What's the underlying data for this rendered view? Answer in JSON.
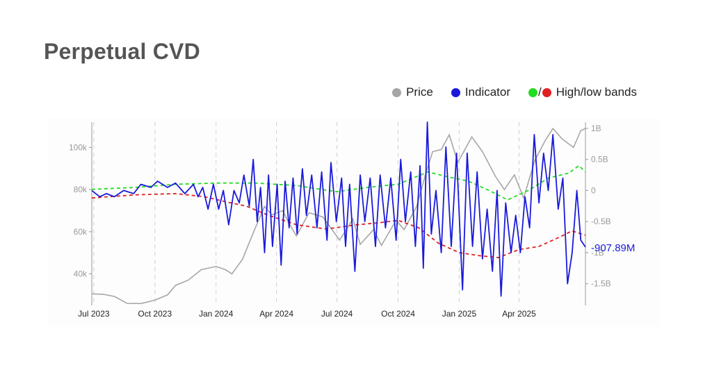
{
  "title": "Perpetual CVD",
  "legend": {
    "price_label": "Price",
    "indicator_label": "Indicator",
    "bands_slash": "/",
    "bands_label": "High/low bands"
  },
  "colors": {
    "price": "#a6a6a6",
    "indicator": "#1a1adb",
    "high_band": "#22dd22",
    "low_band": "#e02020",
    "last_value": "#1a1adb"
  },
  "chart_data": {
    "type": "line",
    "x_ticks": [
      "Jul 2023",
      "Oct 2023",
      "Jan 2024",
      "Apr 2024",
      "Jul 2024",
      "Oct 2024",
      "Jan 2025",
      "Apr 2025"
    ],
    "x_tick_dates": [
      "2023-07-01",
      "2023-10-01",
      "2024-01-01",
      "2024-04-01",
      "2024-07-01",
      "2024-10-01",
      "2025-01-01",
      "2025-04-01"
    ],
    "x_range": [
      "2023-06-28",
      "2025-07-10"
    ],
    "y_left": {
      "ticks": [
        40000,
        60000,
        80000,
        100000
      ],
      "tick_labels": [
        "40k",
        "60k",
        "80k",
        "100k"
      ],
      "range": [
        25000,
        112000
      ]
    },
    "y_right": {
      "ticks": [
        1,
        0.5,
        0,
        -0.5,
        -1,
        -1.5
      ],
      "tick_labels": [
        "1B",
        "0.5B",
        "0",
        "-0.5B",
        "-1B",
        "-1.5B"
      ],
      "range": [
        -1.85,
        1.1
      ],
      "unit": "B"
    },
    "grid": "vertical dashed at x ticks",
    "last_value_label": "-907.89M",
    "series": [
      {
        "name": "Price",
        "axis": "left",
        "points": [
          [
            "2023-06-28",
            30500
          ],
          [
            "2023-07-15",
            30300
          ],
          [
            "2023-08-01",
            29300
          ],
          [
            "2023-08-20",
            26000
          ],
          [
            "2023-09-10",
            25900
          ],
          [
            "2023-10-01",
            27500
          ],
          [
            "2023-10-20",
            30000
          ],
          [
            "2023-11-01",
            34500
          ],
          [
            "2023-11-20",
            37000
          ],
          [
            "2023-12-10",
            42000
          ],
          [
            "2024-01-01",
            43500
          ],
          [
            "2024-01-15",
            42000
          ],
          [
            "2024-01-25",
            40000
          ],
          [
            "2024-02-10",
            47000
          ],
          [
            "2024-02-28",
            61000
          ],
          [
            "2024-03-14",
            72000
          ],
          [
            "2024-03-25",
            68000
          ],
          [
            "2024-04-10",
            70000
          ],
          [
            "2024-04-20",
            64000
          ],
          [
            "2024-05-01",
            58000
          ],
          [
            "2024-05-20",
            69000
          ],
          [
            "2024-06-10",
            67000
          ],
          [
            "2024-07-05",
            56000
          ],
          [
            "2024-07-25",
            66000
          ],
          [
            "2024-08-05",
            54000
          ],
          [
            "2024-08-25",
            61000
          ],
          [
            "2024-09-06",
            53500
          ],
          [
            "2024-09-28",
            65500
          ],
          [
            "2024-10-10",
            61000
          ],
          [
            "2024-10-29",
            72000
          ],
          [
            "2024-11-12",
            88000
          ],
          [
            "2024-11-22",
            98000
          ],
          [
            "2024-12-05",
            99000
          ],
          [
            "2024-12-17",
            106000
          ],
          [
            "2024-12-30",
            93000
          ],
          [
            "2025-01-20",
            105000
          ],
          [
            "2025-02-05",
            98000
          ],
          [
            "2025-02-25",
            86000
          ],
          [
            "2025-03-10",
            80000
          ],
          [
            "2025-03-25",
            87000
          ],
          [
            "2025-04-08",
            76000
          ],
          [
            "2025-04-25",
            94000
          ],
          [
            "2025-05-10",
            103000
          ],
          [
            "2025-05-22",
            109000
          ],
          [
            "2025-06-05",
            104000
          ],
          [
            "2025-06-22",
            100000
          ],
          [
            "2025-07-03",
            108000
          ],
          [
            "2025-07-10",
            109000
          ]
        ]
      },
      {
        "name": "Indicator",
        "axis": "right",
        "points": [
          [
            "2023-06-28",
            0.0
          ],
          [
            "2023-07-10",
            -0.1
          ],
          [
            "2023-07-20",
            -0.05
          ],
          [
            "2023-08-01",
            -0.1
          ],
          [
            "2023-08-15",
            0.0
          ],
          [
            "2023-08-30",
            -0.05
          ],
          [
            "2023-09-10",
            0.1
          ],
          [
            "2023-09-25",
            0.05
          ],
          [
            "2023-10-05",
            0.15
          ],
          [
            "2023-10-20",
            0.05
          ],
          [
            "2023-11-01",
            0.12
          ],
          [
            "2023-11-15",
            -0.05
          ],
          [
            "2023-11-28",
            0.1
          ],
          [
            "2023-12-05",
            -0.1
          ],
          [
            "2023-12-12",
            0.05
          ],
          [
            "2023-12-20",
            -0.3
          ],
          [
            "2023-12-28",
            0.1
          ],
          [
            "2024-01-05",
            -0.3
          ],
          [
            "2024-01-12",
            0.0
          ],
          [
            "2024-01-20",
            -0.55
          ],
          [
            "2024-01-28",
            0.0
          ],
          [
            "2024-02-05",
            -0.2
          ],
          [
            "2024-02-12",
            0.25
          ],
          [
            "2024-02-20",
            -0.25
          ],
          [
            "2024-02-26",
            0.5
          ],
          [
            "2024-03-03",
            -0.5
          ],
          [
            "2024-03-08",
            0.05
          ],
          [
            "2024-03-14",
            -1.0
          ],
          [
            "2024-03-20",
            0.25
          ],
          [
            "2024-03-26",
            -0.9
          ],
          [
            "2024-04-02",
            0.1
          ],
          [
            "2024-04-08",
            -1.2
          ],
          [
            "2024-04-14",
            0.15
          ],
          [
            "2024-04-20",
            -0.6
          ],
          [
            "2024-04-26",
            0.2
          ],
          [
            "2024-05-02",
            -0.7
          ],
          [
            "2024-05-10",
            0.35
          ],
          [
            "2024-05-16",
            -0.4
          ],
          [
            "2024-05-24",
            0.25
          ],
          [
            "2024-06-01",
            -0.6
          ],
          [
            "2024-06-08",
            0.3
          ],
          [
            "2024-06-16",
            -0.8
          ],
          [
            "2024-06-22",
            0.45
          ],
          [
            "2024-06-30",
            -0.5
          ],
          [
            "2024-07-08",
            0.2
          ],
          [
            "2024-07-14",
            -0.9
          ],
          [
            "2024-07-20",
            0.1
          ],
          [
            "2024-07-28",
            -1.3
          ],
          [
            "2024-08-05",
            0.25
          ],
          [
            "2024-08-12",
            -0.5
          ],
          [
            "2024-08-20",
            0.2
          ],
          [
            "2024-08-28",
            -0.9
          ],
          [
            "2024-09-04",
            0.25
          ],
          [
            "2024-09-12",
            -0.6
          ],
          [
            "2024-09-20",
            0.2
          ],
          [
            "2024-09-28",
            -0.8
          ],
          [
            "2024-10-05",
            0.5
          ],
          [
            "2024-10-12",
            -0.5
          ],
          [
            "2024-10-20",
            0.3
          ],
          [
            "2024-10-27",
            -0.9
          ],
          [
            "2024-11-03",
            0.4
          ],
          [
            "2024-11-08",
            -1.25
          ],
          [
            "2024-11-14",
            1.1
          ],
          [
            "2024-11-20",
            -0.7
          ],
          [
            "2024-11-27",
            0.0
          ],
          [
            "2024-12-05",
            -1.0
          ],
          [
            "2024-12-12",
            0.7
          ],
          [
            "2024-12-20",
            -0.9
          ],
          [
            "2024-12-28",
            0.6
          ],
          [
            "2025-01-06",
            -1.6
          ],
          [
            "2025-01-13",
            0.6
          ],
          [
            "2025-01-21",
            -0.9
          ],
          [
            "2025-01-28",
            0.3
          ],
          [
            "2025-02-05",
            -1.1
          ],
          [
            "2025-02-12",
            -0.3
          ],
          [
            "2025-02-20",
            -1.3
          ],
          [
            "2025-02-27",
            0.0
          ],
          [
            "2025-03-05",
            -1.7
          ],
          [
            "2025-03-12",
            -0.2
          ],
          [
            "2025-03-20",
            -1.0
          ],
          [
            "2025-03-27",
            -0.4
          ],
          [
            "2025-04-03",
            -1.0
          ],
          [
            "2025-04-10",
            -0.1
          ],
          [
            "2025-04-17",
            -0.6
          ],
          [
            "2025-04-24",
            0.9
          ],
          [
            "2025-05-01",
            -0.2
          ],
          [
            "2025-05-08",
            0.6
          ],
          [
            "2025-05-15",
            0.0
          ],
          [
            "2025-05-22",
            0.9
          ],
          [
            "2025-05-30",
            -0.3
          ],
          [
            "2025-06-06",
            0.2
          ],
          [
            "2025-06-13",
            -1.5
          ],
          [
            "2025-06-20",
            -1.0
          ],
          [
            "2025-06-27",
            0.0
          ],
          [
            "2025-07-03",
            -0.8
          ],
          [
            "2025-07-10",
            -0.91
          ]
        ]
      },
      {
        "name": "High band",
        "axis": "right",
        "points": [
          [
            "2023-06-28",
            0.02
          ],
          [
            "2023-09-01",
            0.05
          ],
          [
            "2023-11-01",
            0.1
          ],
          [
            "2024-01-01",
            0.12
          ],
          [
            "2024-03-01",
            0.12
          ],
          [
            "2024-05-01",
            0.08
          ],
          [
            "2024-07-01",
            -0.02
          ],
          [
            "2024-08-15",
            0.05
          ],
          [
            "2024-10-01",
            0.1
          ],
          [
            "2024-11-15",
            0.3
          ],
          [
            "2024-12-15",
            0.22
          ],
          [
            "2025-01-15",
            0.15
          ],
          [
            "2025-02-15",
            0.0
          ],
          [
            "2025-03-15",
            -0.15
          ],
          [
            "2025-04-15",
            0.0
          ],
          [
            "2025-05-15",
            0.2
          ],
          [
            "2025-06-15",
            0.28
          ],
          [
            "2025-06-30",
            0.4
          ],
          [
            "2025-07-10",
            0.3
          ]
        ]
      },
      {
        "name": "Low band",
        "axis": "right",
        "points": [
          [
            "2023-06-28",
            -0.12
          ],
          [
            "2023-09-01",
            -0.07
          ],
          [
            "2023-11-01",
            -0.05
          ],
          [
            "2023-12-15",
            -0.1
          ],
          [
            "2024-01-15",
            -0.18
          ],
          [
            "2024-02-15",
            -0.25
          ],
          [
            "2024-03-20",
            -0.4
          ],
          [
            "2024-05-01",
            -0.55
          ],
          [
            "2024-06-15",
            -0.62
          ],
          [
            "2024-08-01",
            -0.55
          ],
          [
            "2024-09-01",
            -0.52
          ],
          [
            "2024-10-01",
            -0.48
          ],
          [
            "2024-11-01",
            -0.6
          ],
          [
            "2024-12-01",
            -0.85
          ],
          [
            "2025-01-01",
            -1.0
          ],
          [
            "2025-02-01",
            -1.05
          ],
          [
            "2025-03-01",
            -1.08
          ],
          [
            "2025-04-01",
            -0.95
          ],
          [
            "2025-05-01",
            -0.9
          ],
          [
            "2025-06-01",
            -0.75
          ],
          [
            "2025-06-20",
            -0.65
          ],
          [
            "2025-07-10",
            -0.72
          ]
        ]
      }
    ]
  }
}
